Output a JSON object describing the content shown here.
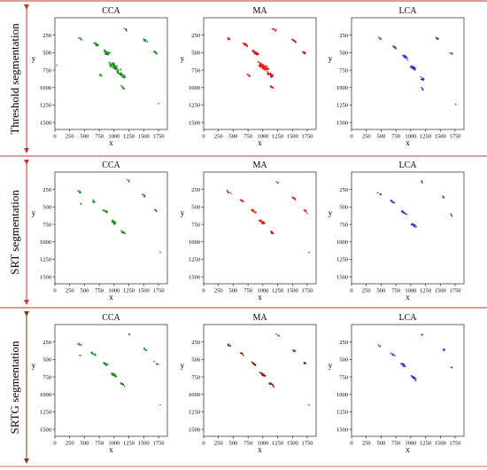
{
  "figure": {
    "row_labels": [
      "Threshold segmentation",
      "SRT segmentation",
      "SRTG segmentation"
    ],
    "row_colors": {
      "separator": "#c0392b",
      "arrow": "#c0392b",
      "arrow_last": "#7b3f00"
    }
  },
  "chart_data": [
    {
      "type": "scatter",
      "row": "Threshold segmentation",
      "title": "CCA",
      "color": "#1f8a1f",
      "xlabel": "x",
      "ylabel": "y",
      "xlim": [
        0,
        1900
      ],
      "ylim": [
        1600,
        0
      ],
      "y_inverted": true,
      "xticks": [
        0,
        250,
        500,
        750,
        1000,
        1250,
        1500,
        1750
      ],
      "yticks": [
        250,
        500,
        750,
        1000,
        1250,
        1500
      ],
      "grid": false,
      "clusters": [
        {
          "x": 430,
          "y": 300,
          "n": 6
        },
        {
          "x": 700,
          "y": 380,
          "n": 18
        },
        {
          "x": 870,
          "y": 500,
          "n": 32
        },
        {
          "x": 1000,
          "y": 700,
          "n": 55
        },
        {
          "x": 1130,
          "y": 820,
          "n": 32
        },
        {
          "x": 1200,
          "y": 170,
          "n": 7
        },
        {
          "x": 1520,
          "y": 320,
          "n": 12
        },
        {
          "x": 1700,
          "y": 500,
          "n": 9
        },
        {
          "x": 1150,
          "y": 1000,
          "n": 8
        },
        {
          "x": 770,
          "y": 820,
          "n": 6
        },
        {
          "x": 1750,
          "y": 1230,
          "n": 1
        },
        {
          "x": 30,
          "y": 680,
          "n": 1
        }
      ]
    },
    {
      "type": "scatter",
      "row": "Threshold segmentation",
      "title": "MA",
      "color": "#e01010",
      "xlabel": "x",
      "ylabel": "y",
      "xlim": [
        0,
        1900
      ],
      "ylim": [
        1600,
        0
      ],
      "y_inverted": true,
      "xticks": [
        0,
        250,
        500,
        750,
        1000,
        1250,
        1500,
        1750
      ],
      "yticks": [
        250,
        500,
        750,
        1000,
        1250,
        1500
      ],
      "grid": false,
      "clusters": [
        {
          "x": 430,
          "y": 300,
          "n": 6
        },
        {
          "x": 700,
          "y": 380,
          "n": 16
        },
        {
          "x": 870,
          "y": 500,
          "n": 30
        },
        {
          "x": 1000,
          "y": 700,
          "n": 55
        },
        {
          "x": 1130,
          "y": 820,
          "n": 30
        },
        {
          "x": 1200,
          "y": 170,
          "n": 7
        },
        {
          "x": 1520,
          "y": 330,
          "n": 12
        },
        {
          "x": 1700,
          "y": 500,
          "n": 9
        },
        {
          "x": 1150,
          "y": 1000,
          "n": 8
        },
        {
          "x": 770,
          "y": 830,
          "n": 6
        }
      ]
    },
    {
      "type": "scatter",
      "row": "Threshold segmentation",
      "title": "LCA",
      "color": "#3333cc",
      "xlabel": "x",
      "ylabel": "y",
      "xlim": [
        0,
        1900
      ],
      "ylim": [
        1600,
        0
      ],
      "y_inverted": true,
      "xticks": [
        0,
        250,
        500,
        750,
        1000,
        1250,
        1500,
        1750
      ],
      "yticks": [
        250,
        500,
        750,
        1000,
        1250,
        1500
      ],
      "grid": false,
      "clusters": [
        {
          "x": 480,
          "y": 300,
          "n": 5
        },
        {
          "x": 720,
          "y": 420,
          "n": 12
        },
        {
          "x": 900,
          "y": 560,
          "n": 20
        },
        {
          "x": 1050,
          "y": 720,
          "n": 30
        },
        {
          "x": 1200,
          "y": 880,
          "n": 18
        },
        {
          "x": 1450,
          "y": 300,
          "n": 6
        },
        {
          "x": 1700,
          "y": 520,
          "n": 6
        },
        {
          "x": 1200,
          "y": 1020,
          "n": 5
        },
        {
          "x": 1760,
          "y": 1240,
          "n": 1
        }
      ]
    },
    {
      "type": "scatter",
      "row": "SRT segmentation",
      "title": "CCA",
      "color": "#1f8a1f",
      "xlabel": "x",
      "ylabel": "y",
      "xlim": [
        0,
        1900
      ],
      "ylim": [
        1600,
        0
      ],
      "y_inverted": true,
      "xticks": [
        0,
        250,
        500,
        750,
        1000,
        1250,
        1500,
        1750
      ],
      "yticks": [
        250,
        500,
        750,
        1000,
        1250,
        1500
      ],
      "grid": false,
      "clusters": [
        {
          "x": 420,
          "y": 290,
          "n": 7
        },
        {
          "x": 650,
          "y": 420,
          "n": 10
        },
        {
          "x": 850,
          "y": 560,
          "n": 14
        },
        {
          "x": 1000,
          "y": 720,
          "n": 26
        },
        {
          "x": 1150,
          "y": 860,
          "n": 12
        },
        {
          "x": 1250,
          "y": 130,
          "n": 4
        },
        {
          "x": 1520,
          "y": 350,
          "n": 8
        },
        {
          "x": 1720,
          "y": 560,
          "n": 6
        },
        {
          "x": 1780,
          "y": 1150,
          "n": 1
        },
        {
          "x": 430,
          "y": 450,
          "n": 2
        }
      ]
    },
    {
      "type": "scatter",
      "row": "SRT segmentation",
      "title": "MA",
      "color": "#e01010",
      "xlabel": "x",
      "ylabel": "y",
      "xlim": [
        0,
        1900
      ],
      "ylim": [
        1600,
        0
      ],
      "y_inverted": true,
      "xticks": [
        0,
        250,
        500,
        750,
        1000,
        1250,
        1500,
        1750
      ],
      "yticks": [
        250,
        500,
        750,
        1000,
        1250,
        1500
      ],
      "grid": false,
      "clusters": [
        {
          "x": 420,
          "y": 290,
          "n": 6
        },
        {
          "x": 650,
          "y": 420,
          "n": 9
        },
        {
          "x": 850,
          "y": 560,
          "n": 14
        },
        {
          "x": 1000,
          "y": 720,
          "n": 24
        },
        {
          "x": 1150,
          "y": 860,
          "n": 12
        },
        {
          "x": 1250,
          "y": 150,
          "n": 3
        },
        {
          "x": 1520,
          "y": 370,
          "n": 8
        },
        {
          "x": 1720,
          "y": 560,
          "n": 6
        },
        {
          "x": 1780,
          "y": 1150,
          "n": 1
        }
      ]
    },
    {
      "type": "scatter",
      "row": "SRT segmentation",
      "title": "LCA",
      "color": "#3333cc",
      "xlabel": "x",
      "ylabel": "y",
      "xlim": [
        0,
        1900
      ],
      "ylim": [
        1600,
        0
      ],
      "y_inverted": true,
      "xticks": [
        0,
        250,
        500,
        750,
        1000,
        1250,
        1500,
        1750
      ],
      "yticks": [
        250,
        500,
        750,
        1000,
        1250,
        1500
      ],
      "grid": false,
      "clusters": [
        {
          "x": 470,
          "y": 300,
          "n": 4
        },
        {
          "x": 700,
          "y": 430,
          "n": 8
        },
        {
          "x": 880,
          "y": 580,
          "n": 14
        },
        {
          "x": 1050,
          "y": 760,
          "n": 22
        },
        {
          "x": 1200,
          "y": 150,
          "n": 3
        },
        {
          "x": 1560,
          "y": 360,
          "n": 4
        },
        {
          "x": 1700,
          "y": 620,
          "n": 3
        }
      ]
    },
    {
      "type": "scatter",
      "row": "SRTG segmentation",
      "title": "CCA",
      "color": "#1f8a1f",
      "xlabel": "x",
      "ylabel": "y",
      "xlim": [
        0,
        1900
      ],
      "ylim": [
        1600,
        0
      ],
      "y_inverted": true,
      "xticks": [
        0,
        250,
        500,
        750,
        1000,
        1250,
        1500,
        1750
      ],
      "yticks": [
        250,
        500,
        750,
        1000,
        1250,
        1500
      ],
      "grid": false,
      "clusters": [
        {
          "x": 420,
          "y": 290,
          "n": 7
        },
        {
          "x": 650,
          "y": 420,
          "n": 10
        },
        {
          "x": 850,
          "y": 560,
          "n": 14
        },
        {
          "x": 1000,
          "y": 720,
          "n": 26
        },
        {
          "x": 1150,
          "y": 860,
          "n": 12
        },
        {
          "x": 1250,
          "y": 130,
          "n": 4
        },
        {
          "x": 1520,
          "y": 350,
          "n": 8
        },
        {
          "x": 1720,
          "y": 560,
          "n": 6
        },
        {
          "x": 1780,
          "y": 1150,
          "n": 1
        },
        {
          "x": 430,
          "y": 450,
          "n": 2
        }
      ]
    },
    {
      "type": "scatter",
      "row": "SRTG segmentation",
      "title": "MA",
      "color": "#8b1a00",
      "xlabel": "x",
      "ylabel": "y",
      "xlim": [
        0,
        1900
      ],
      "ylim": [
        1600,
        0
      ],
      "y_inverted": true,
      "xticks": [
        0,
        250,
        500,
        750,
        1000,
        1250,
        1500,
        1750
      ],
      "yticks": [
        250,
        500,
        750,
        1000,
        1250,
        1500
      ],
      "grid": false,
      "clusters": [
        {
          "x": 420,
          "y": 290,
          "n": 6
        },
        {
          "x": 650,
          "y": 420,
          "n": 9
        },
        {
          "x": 850,
          "y": 560,
          "n": 14
        },
        {
          "x": 1000,
          "y": 720,
          "n": 24
        },
        {
          "x": 1150,
          "y": 860,
          "n": 12
        },
        {
          "x": 1250,
          "y": 150,
          "n": 3
        },
        {
          "x": 1520,
          "y": 370,
          "n": 8
        },
        {
          "x": 1720,
          "y": 560,
          "n": 6
        },
        {
          "x": 1780,
          "y": 1150,
          "n": 1
        }
      ]
    },
    {
      "type": "scatter",
      "row": "SRTG segmentation",
      "title": "LCA",
      "color": "#3333cc",
      "xlabel": "x",
      "ylabel": "y",
      "xlim": [
        0,
        1900
      ],
      "ylim": [
        1600,
        0
      ],
      "y_inverted": true,
      "xticks": [
        0,
        250,
        500,
        750,
        1000,
        1250,
        1500,
        1750
      ],
      "yticks": [
        250,
        500,
        750,
        1000,
        1250,
        1500
      ],
      "grid": false,
      "clusters": [
        {
          "x": 470,
          "y": 300,
          "n": 4
        },
        {
          "x": 700,
          "y": 430,
          "n": 8
        },
        {
          "x": 880,
          "y": 580,
          "n": 14
        },
        {
          "x": 1050,
          "y": 760,
          "n": 22
        },
        {
          "x": 1200,
          "y": 150,
          "n": 3
        },
        {
          "x": 1560,
          "y": 360,
          "n": 4
        },
        {
          "x": 1700,
          "y": 620,
          "n": 3
        }
      ]
    }
  ]
}
